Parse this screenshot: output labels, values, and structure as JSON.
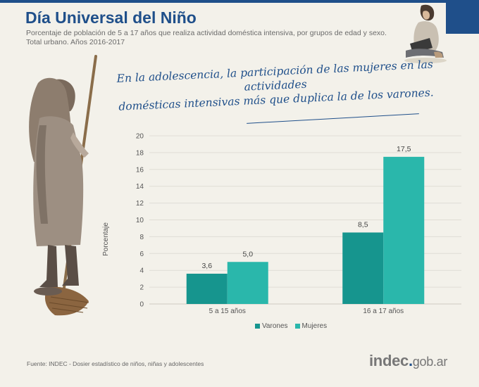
{
  "header": {
    "title": "Día Universal del Niño",
    "subtitle": "Porcentaje de población de 5 a 17 años que realiza actividad doméstica intensiva, por grupos de edad y sexo. Total urbano. Años 2016-2017"
  },
  "headline": {
    "line1": "En la adolescencia, la participación de las mujeres en las actividades",
    "line2": "domésticas intensivas más que duplica la de los varones."
  },
  "colors": {
    "varones": "#16958e",
    "mujeres": "#2ab7ab",
    "brand": "#1f4f8a",
    "grid": "#e0ddd5"
  },
  "chart_data": {
    "type": "bar",
    "categories": [
      "5 a 15 años",
      "16 a 17 años"
    ],
    "series": [
      {
        "name": "Varones",
        "values": [
          3.6,
          8.5
        ],
        "labels": [
          "3,6",
          "8,5"
        ]
      },
      {
        "name": "Mujeres",
        "values": [
          5.0,
          17.5
        ],
        "labels": [
          "5,0",
          "17,5"
        ]
      }
    ],
    "ylabel": "Porcentaje",
    "ylim": [
      0,
      20
    ],
    "yticks": [
      0,
      2,
      4,
      6,
      8,
      10,
      12,
      14,
      16,
      18,
      20
    ],
    "grid": true,
    "legend": "bottom"
  },
  "footer": {
    "source": "Fuente: INDEC - Dosier estadístico de niños, niñas y adolescentes",
    "logo_main": "indec",
    "logo_dot": ".",
    "logo_suffix": "gob.ar"
  }
}
